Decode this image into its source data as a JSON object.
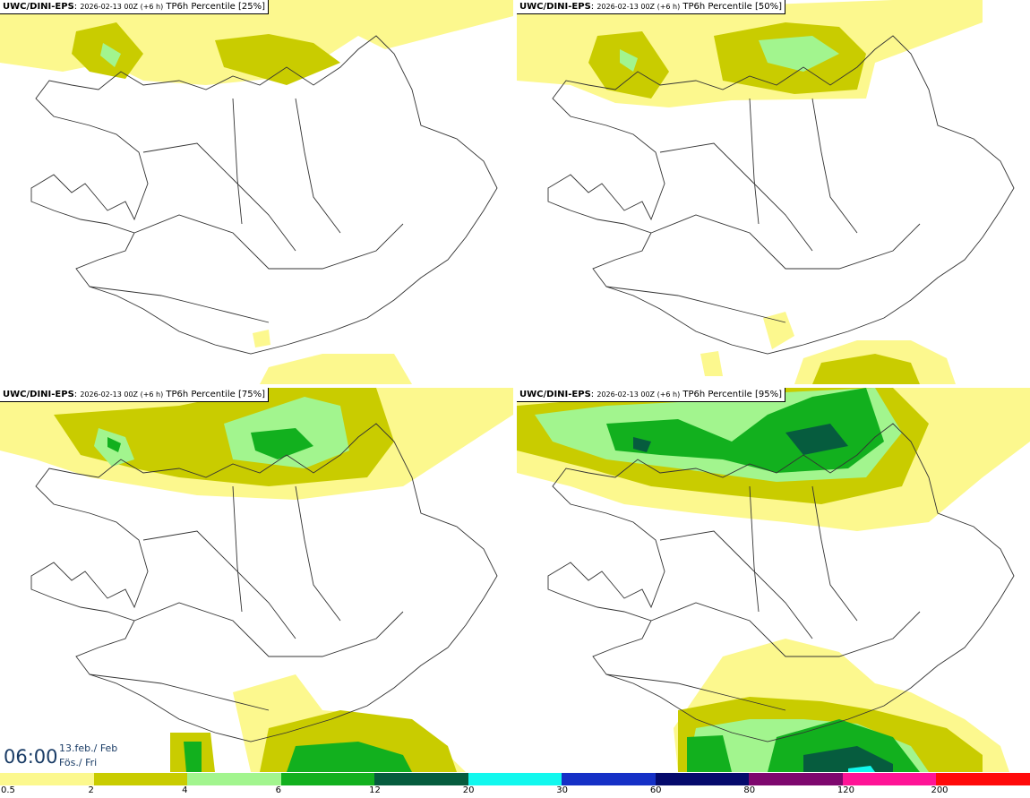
{
  "panels": [
    {
      "title_model": "UWC/DINI-EPS",
      "title_time": "2026-02-13 00Z (+6 h)",
      "title_field": "TP6h Percentile [25%]"
    },
    {
      "title_model": "UWC/DINI-EPS",
      "title_time": "2026-02-13 00Z (+6 h)",
      "title_field": "TP6h Percentile [50%]"
    },
    {
      "title_model": "UWC/DINI-EPS",
      "title_time": "2026-02-13 00Z (+6 h)",
      "title_field": "TP6h Percentile [75%]"
    },
    {
      "title_model": "UWC/DINI-EPS",
      "title_time": "2026-02-13 00Z (+6 h)",
      "title_field": "TP6h Percentile [95%]"
    }
  ],
  "valid": {
    "time": "06:00",
    "date_line1": "13.feb./ Feb",
    "date_line2": "Fös./ Fri"
  },
  "colorbar": {
    "labels": [
      "0.5",
      "2",
      "4",
      "6",
      "12",
      "20",
      "30",
      "60",
      "80",
      "120",
      "200"
    ],
    "colors": [
      "#fcf88e",
      "#c9cc00",
      "#a2f58e",
      "#12b01e",
      "#065c3e",
      "#12f8ee",
      "#1530c6",
      "#050a6c",
      "#7e076e",
      "#ff1496",
      "#ff0a0a"
    ]
  }
}
